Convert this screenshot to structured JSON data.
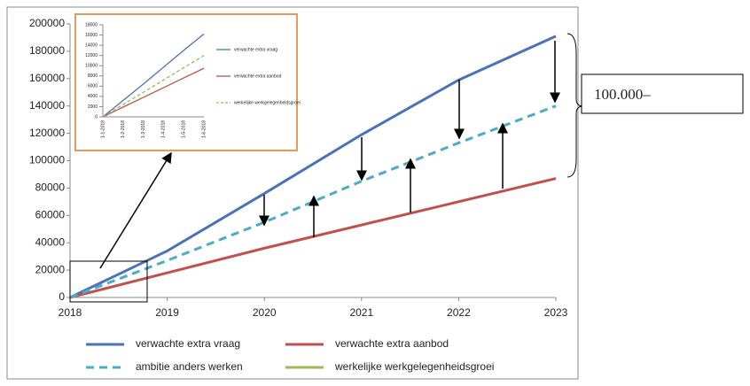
{
  "chart_data": [
    {
      "type": "line",
      "annotation": "100.000–",
      "x": [
        2018,
        2019,
        2020,
        2021,
        2022,
        2023
      ],
      "xlim": [
        2018,
        2023
      ],
      "xticks": [
        2018,
        2019,
        2020,
        2021,
        2022,
        2023
      ],
      "ylim": [
        0,
        200000
      ],
      "yticks": [
        0,
        20000,
        40000,
        60000,
        80000,
        100000,
        120000,
        140000,
        160000,
        180000,
        200000
      ],
      "series": [
        {
          "name": "verwachte extra vraag",
          "color": "#4a72b8",
          "values": [
            0,
            34000,
            76000,
            119000,
            159000,
            191000
          ]
        },
        {
          "name": "verwachte extra aanbod",
          "color": "#c0504d",
          "values": [
            0,
            18000,
            36000,
            53000,
            70000,
            87000
          ]
        },
        {
          "name": "ambitie anders werken",
          "color": "#4bacc6",
          "dashed": true,
          "values": [
            0,
            27000,
            55000,
            85000,
            113000,
            140000
          ]
        },
        {
          "name": "werkelijke werkgelegenheidsgroei",
          "color": "#9bbb59",
          "values": [
            0,
            null,
            null,
            null,
            null,
            null
          ]
        }
      ]
    },
    {
      "type": "line",
      "categories": [
        "1-1-2018",
        "1-2-2018",
        "1-3-2018",
        "1-4-2018",
        "1-5-2018",
        "1-6-2018"
      ],
      "ylim": [
        0,
        18000
      ],
      "yticks": [
        0,
        2000,
        4000,
        6000,
        8000,
        10000,
        12000,
        14000,
        16000,
        18000
      ],
      "series": [
        {
          "name": "verwachte extra vraag",
          "color": "#4a72b8",
          "values": [
            0,
            3200,
            6400,
            9700,
            13000,
            16200
          ]
        },
        {
          "name": "verwachte extra aanbod",
          "color": "#c0504d",
          "values": [
            0,
            1900,
            3800,
            5700,
            7600,
            9500
          ]
        },
        {
          "name": "werkelijke werkgelegenheidsgroei",
          "color": "#9bbb59",
          "dashed": true,
          "values": [
            0,
            2400,
            4800,
            7200,
            9600,
            12000
          ]
        }
      ]
    }
  ]
}
